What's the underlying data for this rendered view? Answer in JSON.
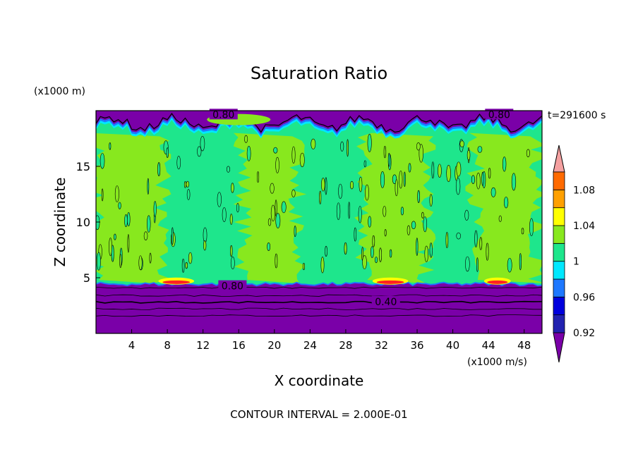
{
  "chart_data": {
    "type": "heatmap",
    "title": "Saturation Ratio",
    "xlabel": "X coordinate",
    "ylabel": "Z coordinate",
    "x_unit": "(x1000 m/s)",
    "y_unit": "(x1000 m)",
    "time_label": "t=291600 s",
    "footer": "CONTOUR INTERVAL = 2.000E-01",
    "xlim": [
      0,
      50
    ],
    "ylim": [
      0,
      20
    ],
    "x_ticks": [
      4,
      8,
      12,
      16,
      20,
      24,
      28,
      32,
      36,
      40,
      44,
      48
    ],
    "x_tick_labels": [
      "4",
      "8",
      "12",
      "16",
      "20",
      "24",
      "28",
      "32",
      "36",
      "40",
      "44",
      "48"
    ],
    "y_ticks": [
      5,
      10,
      15
    ],
    "y_tick_labels": [
      "5",
      "10",
      "15"
    ],
    "contour_labels": [
      {
        "text": "0.80",
        "x": 14.3,
        "z": 19.6
      },
      {
        "text": "0.80",
        "x": 45.2,
        "z": 19.6
      },
      {
        "text": "0.80",
        "x": 15.3,
        "z": 4.2
      },
      {
        "text": "0.40",
        "x": 32.5,
        "z": 2.8
      }
    ],
    "colorbar": {
      "levels": [
        0.92,
        0.94,
        0.96,
        0.98,
        1.0,
        1.02,
        1.04,
        1.06,
        1.08,
        1.1
      ],
      "colors": [
        "#7a00a8",
        "#2222b0",
        "#0000dd",
        "#1e78ff",
        "#00e8ff",
        "#1ee68c",
        "#88e81e",
        "#ffff00",
        "#ffa000",
        "#ff6a00",
        "#ff2222",
        "#f4a0a0"
      ],
      "tick_labels": [
        {
          "text": "0.92",
          "value": 0.92
        },
        {
          "text": "0.96",
          "value": 0.96
        },
        {
          "text": "1",
          "value": 1.0
        },
        {
          "text": "1.04",
          "value": 1.04
        },
        {
          "text": "1.08",
          "value": 1.08
        }
      ]
    },
    "regions": {
      "dry_lower_layer": {
        "z_top": 4.5,
        "value": 0.4
      },
      "dry_upper_layer": {
        "z_bottom": 18.3,
        "value": 0.8
      },
      "saturated_columns": [
        [
          0,
          7.5
        ],
        [
          16.5,
          22.5
        ],
        [
          30,
          37
        ],
        [
          42.5,
          49.5
        ]
      ],
      "supersaturated_spots": [
        [
          7,
          11
        ],
        [
          31,
          35
        ],
        [
          43.5,
          46.5
        ]
      ]
    }
  }
}
